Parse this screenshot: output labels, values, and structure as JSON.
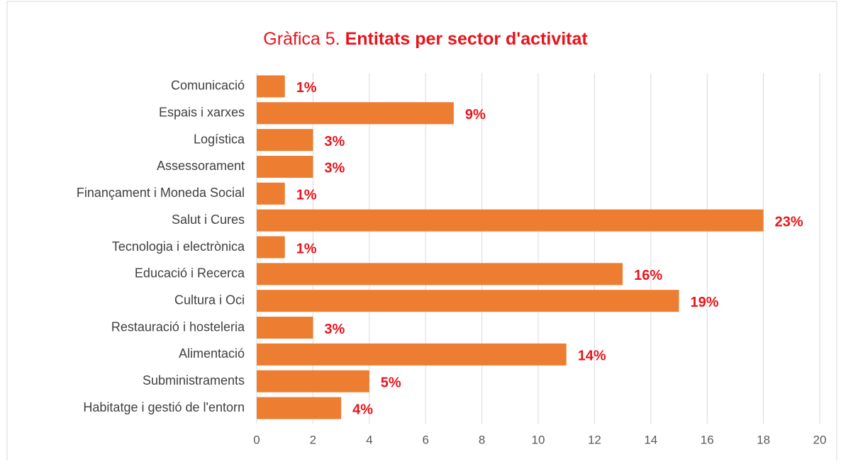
{
  "chart_data": {
    "type": "bar",
    "orientation": "horizontal",
    "title": "Gràfica 5.",
    "title_bold": "Entitats per sector d'activitat",
    "categories": [
      "Comunicació",
      "Espais i xarxes",
      "Logística",
      "Assessorament",
      "Finançament i Moneda Social",
      "Salut i Cures",
      "Tecnologia i electrònica",
      "Educació i Recerca",
      "Cultura i Oci",
      "Restauració i hosteleria",
      "Alimentació",
      "Subministraments",
      "Habitatge i gestió de l'entorn"
    ],
    "values": [
      1,
      7,
      2,
      2,
      1,
      18,
      1,
      13,
      15,
      2,
      11,
      4,
      3
    ],
    "value_labels": [
      "1%",
      "9%",
      "3%",
      "3%",
      "1%",
      "23%",
      "1%",
      "16%",
      "19%",
      "3%",
      "14%",
      "5%",
      "4%"
    ],
    "color": "#ed7d31",
    "label_color": "#e8141b",
    "xlim": [
      0,
      20
    ],
    "xticks": [
      0,
      2,
      4,
      6,
      8,
      10,
      12,
      14,
      16,
      18,
      20
    ],
    "grid": true
  }
}
